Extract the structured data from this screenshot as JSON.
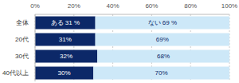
{
  "chart_data": {
    "type": "bar",
    "orientation": "horizontal",
    "stacked": true,
    "categories": [
      "全体",
      "20代",
      "30代",
      "40代以上"
    ],
    "series": [
      {
        "name": "ある",
        "color": "#0c2868",
        "values": [
          31,
          31,
          32,
          30
        ],
        "value_labels": [
          "ある 31 %",
          "31%",
          "32%",
          "30%"
        ]
      },
      {
        "name": "ない",
        "color": "#cde8f8",
        "values": [
          69,
          69,
          68,
          70
        ],
        "value_labels": [
          "ない 69 %",
          "69%",
          "68%",
          "70%"
        ]
      }
    ],
    "xlim": [
      0,
      100
    ],
    "xticks": [
      {
        "value": 0,
        "label": "0%"
      },
      {
        "value": 20,
        "label": "20%"
      },
      {
        "value": 40,
        "label": "40%"
      },
      {
        "value": 60,
        "label": "60%"
      },
      {
        "value": 80,
        "label": "80%"
      },
      {
        "value": 100,
        "label": "100%"
      }
    ],
    "grid": true,
    "data_labels": true
  }
}
